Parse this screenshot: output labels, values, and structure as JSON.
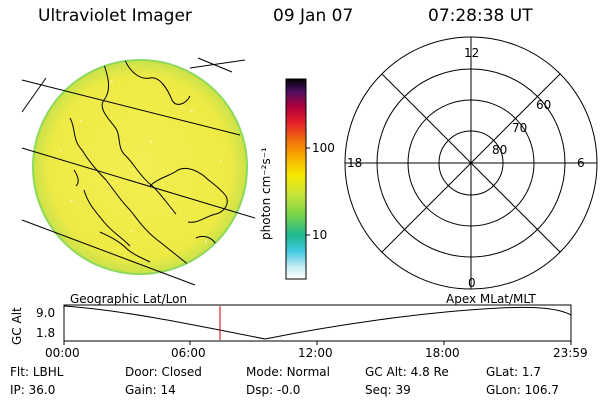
{
  "header": {
    "title": "Ultraviolet Imager",
    "date": "09 Jan 07",
    "time": "07:28:38 UT"
  },
  "colorbar": {
    "unit_label": "photon cm⁻²s⁻¹",
    "ticks": [
      "100",
      "10"
    ]
  },
  "polar": {
    "mlt_labels": [
      "12",
      "18",
      "6",
      "0"
    ],
    "lat_labels": [
      "60",
      "70",
      "80"
    ]
  },
  "timeline": {
    "left_label": "Geographic Lat/Lon",
    "right_label": "Apex MLat/MLT",
    "y_axis_label": "GC Alt",
    "y_ticks": [
      "9.0",
      "1.8"
    ],
    "x_ticks": [
      "00:00",
      "06:00",
      "12:00",
      "18:00",
      "23:59"
    ],
    "current_time_marker": "07:28"
  },
  "info": {
    "row1": [
      {
        "key": "Flt:",
        "value": "LBHL"
      },
      {
        "key": "Door:",
        "value": "Closed"
      },
      {
        "key": "Mode:",
        "value": "Normal"
      },
      {
        "key": "GC Alt:",
        "value": "4.8 Re"
      },
      {
        "key": "GLat:",
        "value": "1.7"
      }
    ],
    "row2": [
      {
        "key": "IP:",
        "value": "36.0"
      },
      {
        "key": "Gain:",
        "value": "14"
      },
      {
        "key": "Dsp:",
        "value": "-0.0"
      },
      {
        "key": "Seq:",
        "value": "39"
      },
      {
        "key": "GLon:",
        "value": "106.7"
      }
    ]
  },
  "colors": {
    "disc_fill": "#f1ee49",
    "disc_edge": "#7fd84f",
    "marker": "#cc0000"
  }
}
